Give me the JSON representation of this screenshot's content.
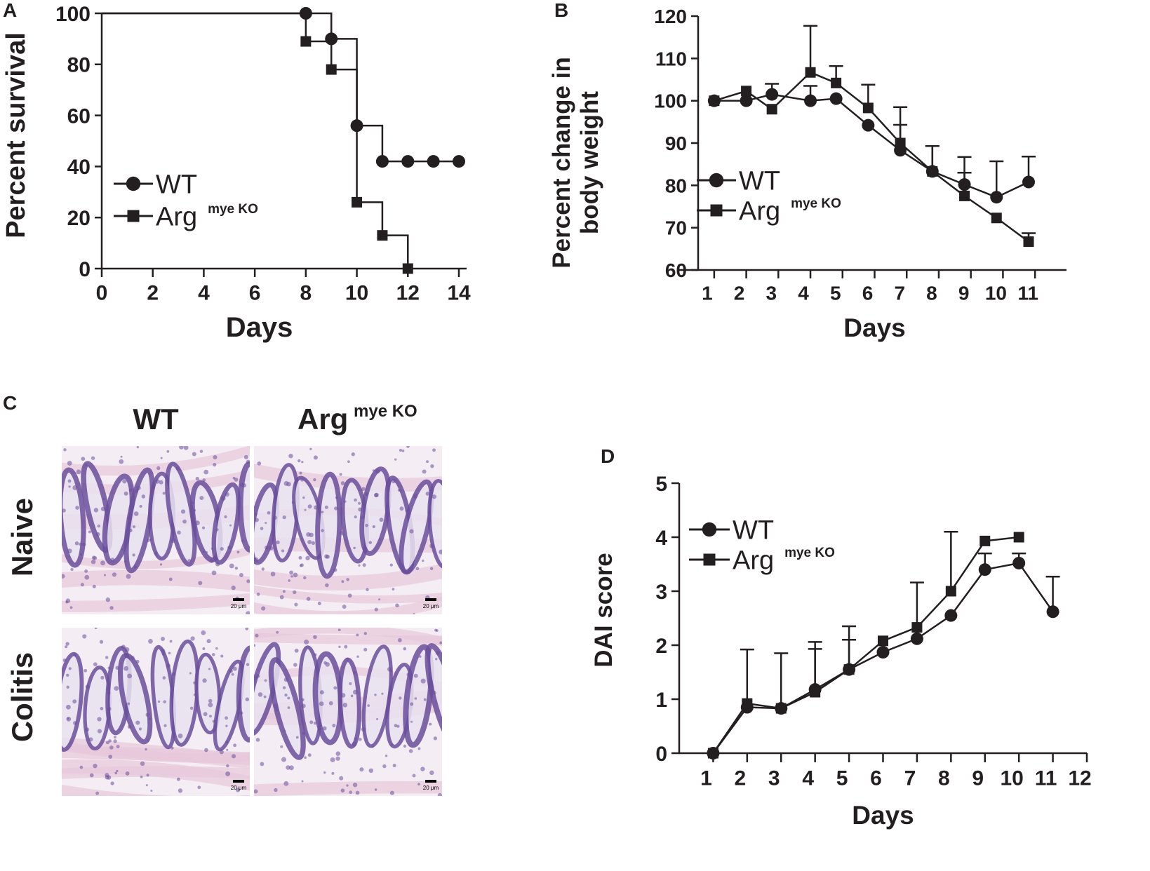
{
  "colors": {
    "ink": "#231f20",
    "stain_pink": "#e7c8da",
    "stain_purple": "#6b4f9c",
    "stain_bg": "#f4eef4"
  },
  "panels": {
    "A": {
      "letter": "A"
    },
    "B": {
      "letter": "B"
    },
    "C": {
      "letter": "C"
    },
    "D": {
      "letter": "D"
    }
  },
  "histology": {
    "col_labels": [
      "WT",
      "Arg"
    ],
    "col_sup": "mye KO",
    "row_labels": [
      "Naive",
      "Colitis"
    ],
    "scale_bar_label": "20 μm"
  },
  "chart_data": [
    {
      "panel": "A",
      "type": "line",
      "subtype": "kaplan-meier",
      "title": "",
      "xlabel": "Days",
      "ylabel": "Percent survival",
      "xlim": [
        0,
        14
      ],
      "ylim": [
        0,
        100
      ],
      "xticks": [
        0,
        2,
        4,
        6,
        8,
        10,
        12,
        14
      ],
      "yticks": [
        0,
        20,
        40,
        60,
        80,
        100
      ],
      "legend": {
        "position": "left-middle",
        "entries": [
          "WT",
          "Arg"
        ],
        "superscript": "mye KO"
      },
      "series": [
        {
          "name": "WT",
          "marker": "circle",
          "steps": [
            [
              0,
              100
            ],
            [
              8,
              100
            ],
            [
              9,
              90
            ],
            [
              10,
              56
            ],
            [
              11,
              42
            ],
            [
              14,
              42
            ]
          ],
          "markers": [
            [
              8,
              100
            ],
            [
              9,
              90
            ],
            [
              10,
              56
            ],
            [
              11,
              42
            ],
            [
              12,
              42
            ],
            [
              13,
              42
            ],
            [
              14,
              42
            ]
          ]
        },
        {
          "name": "Arg mye KO",
          "marker": "square",
          "steps": [
            [
              0,
              100
            ],
            [
              8,
              89
            ],
            [
              9,
              78
            ],
            [
              10,
              26
            ],
            [
              11,
              13
            ],
            [
              12,
              0
            ]
          ],
          "markers": [
            [
              8,
              89
            ],
            [
              9,
              78
            ],
            [
              10,
              26
            ],
            [
              11,
              13
            ],
            [
              12,
              0
            ]
          ]
        }
      ]
    },
    {
      "panel": "B",
      "type": "line",
      "title": "",
      "xlabel": "Days",
      "ylabel": "Percent change in body weight",
      "ylabel_lines": [
        "Percent change in",
        "body weight"
      ],
      "xlim": [
        0.5,
        11.5
      ],
      "ylim": [
        60,
        120
      ],
      "xticks": [
        1,
        2,
        3,
        4,
        5,
        6,
        7,
        8,
        9,
        10,
        11
      ],
      "yticks": [
        60,
        70,
        80,
        90,
        100,
        110,
        120
      ],
      "legend": {
        "position": "left-middle",
        "entries": [
          "WT",
          "Arg"
        ],
        "superscript": "mye KO"
      },
      "series": [
        {
          "name": "WT",
          "marker": "circle",
          "x": [
            1,
            2,
            2.8,
            4,
            4.8,
            5.8,
            6.8,
            7.8,
            8.8,
            9.8,
            10.8
          ],
          "values": [
            100,
            100,
            101.5,
            100,
            100.5,
            94.2,
            88.3,
            83.3,
            80.2,
            77.2,
            80.8
          ],
          "err": [
            0,
            0,
            2.5,
            3.5,
            0,
            0,
            6,
            6,
            6.5,
            8.5,
            6
          ]
        },
        {
          "name": "Arg mye KO",
          "marker": "square",
          "x": [
            1,
            2,
            2.8,
            4,
            4.8,
            5.8,
            6.8,
            7.8,
            8.8,
            9.8,
            10.8
          ],
          "values": [
            100,
            102.3,
            98,
            106.7,
            104.2,
            98.3,
            90,
            83.3,
            77.5,
            72.3,
            66.7
          ],
          "err": [
            0,
            0,
            0,
            11,
            4,
            5.5,
            8.5,
            6,
            5.5,
            0,
            2
          ]
        }
      ]
    },
    {
      "panel": "D",
      "type": "line",
      "title": "",
      "xlabel": "Days",
      "ylabel": "DAI score",
      "xlim": [
        0,
        12
      ],
      "ylim": [
        0,
        5
      ],
      "xticks": [
        1,
        2,
        3,
        4,
        5,
        6,
        7,
        8,
        9,
        10,
        11,
        12
      ],
      "yticks": [
        0,
        1,
        2,
        3,
        4,
        5
      ],
      "legend": {
        "position": "top-left",
        "entries": [
          "WT",
          "Arg"
        ],
        "superscript": "mye KO"
      },
      "series": [
        {
          "name": "WT",
          "marker": "circle",
          "x": [
            1,
            2,
            3,
            4,
            5,
            6,
            7,
            8,
            9,
            10,
            11
          ],
          "values": [
            0,
            0.85,
            0.83,
            1.18,
            1.55,
            1.87,
            2.12,
            2.55,
            3.4,
            3.52,
            2.62
          ],
          "err": [
            0,
            0,
            0,
            0.75,
            0.55,
            0,
            0,
            0,
            0.3,
            0.18,
            0.65
          ]
        },
        {
          "name": "Arg mye KO",
          "marker": "square",
          "x": [
            1,
            2,
            3,
            4,
            5,
            6,
            7,
            8,
            9,
            10
          ],
          "values": [
            0,
            0.92,
            0.83,
            1.13,
            1.55,
            2.08,
            2.33,
            3.0,
            3.93,
            4.0
          ],
          "err": [
            0,
            1.0,
            1.02,
            0.93,
            0.8,
            0,
            0.83,
            1.1,
            0,
            0
          ]
        }
      ]
    }
  ]
}
